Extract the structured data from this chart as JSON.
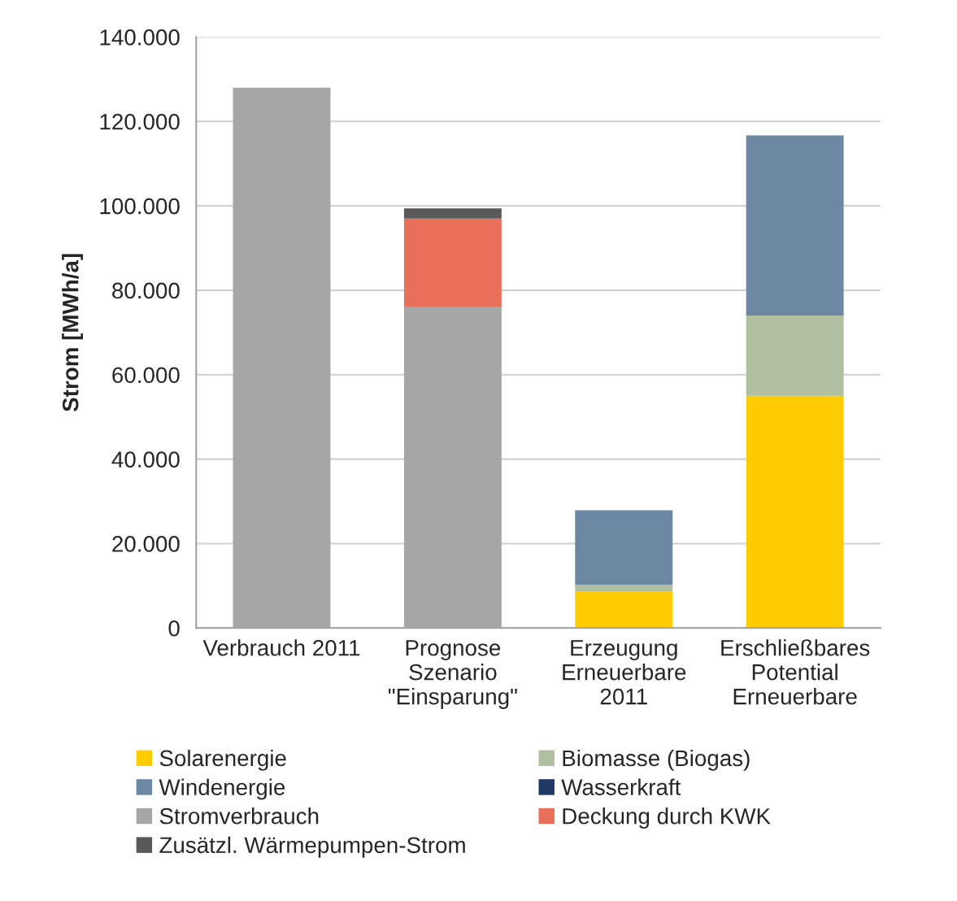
{
  "chart_data": {
    "type": "bar",
    "stacked": true,
    "ylabel": "Strom [MWh/a]",
    "categories": [
      "Verbrauch 2011",
      "Prognose\nSzenario\n\"Einsparung\"",
      "Erzeugung\nErneuerbare\n2011",
      "Erschließbares\nPotential\nErneuerbare"
    ],
    "series": [
      {
        "name": "Solarenergie",
        "color": "#ffcc00",
        "values": [
          null,
          null,
          8700,
          55000
        ]
      },
      {
        "name": "Biomasse (Biogas)",
        "color": "#b0bfa0",
        "values": [
          null,
          null,
          1500,
          19000
        ]
      },
      {
        "name": "Windenergie",
        "color": "#6c88a3",
        "values": [
          null,
          null,
          17700,
          42700
        ]
      },
      {
        "name": "Wasserkraft",
        "color": "#1f3864",
        "values": [
          null,
          null,
          null,
          null
        ]
      },
      {
        "name": "Stromverbrauch",
        "color": "#a6a6a6",
        "values": [
          128000,
          76000,
          null,
          null
        ]
      },
      {
        "name": "Deckung durch KWK",
        "color": "#e8705a",
        "values": [
          null,
          21000,
          null,
          null
        ]
      },
      {
        "name": "Zusätzl. Wärmepumpen-Strom",
        "color": "#595959",
        "values": [
          null,
          2400,
          null,
          null
        ]
      }
    ],
    "ylim": [
      0,
      140000
    ],
    "yticks": [
      {
        "value": 0,
        "label": "0"
      },
      {
        "value": 20000,
        "label": "20.000"
      },
      {
        "value": 40000,
        "label": "40.000"
      },
      {
        "value": 60000,
        "label": "60.000"
      },
      {
        "value": 80000,
        "label": "80.000"
      },
      {
        "value": 100000,
        "label": "100.000"
      },
      {
        "value": 120000,
        "label": "120.000"
      },
      {
        "value": 140000,
        "label": "140.000"
      }
    ],
    "grid": "y",
    "legend": "bottom"
  }
}
